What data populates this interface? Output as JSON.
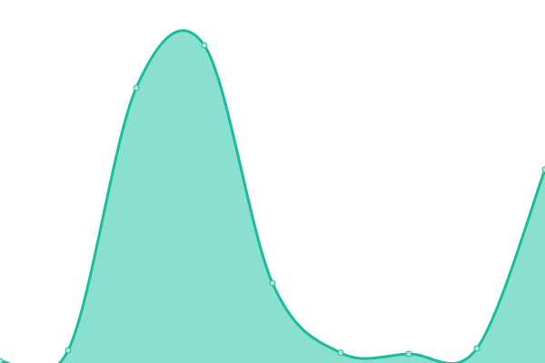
{
  "chart_data": {
    "type": "area",
    "title": "",
    "xlabel": "",
    "ylabel": "",
    "x": [
      0,
      1,
      2,
      3,
      4,
      5,
      6,
      7,
      8
    ],
    "series": [
      {
        "values": [
          0.5,
          3.5,
          75.8,
          87.5,
          22,
          2.8,
          2.5,
          4,
          53.3
        ]
      }
    ],
    "ylim": [
      0,
      100
    ],
    "xlim": [
      0,
      8
    ],
    "grid": false,
    "axes_visible": false,
    "smooth": true,
    "colors": {
      "line": "#1abc9c",
      "fill": "#8ae0cf",
      "marker_fill": "#a8e9dc"
    }
  }
}
